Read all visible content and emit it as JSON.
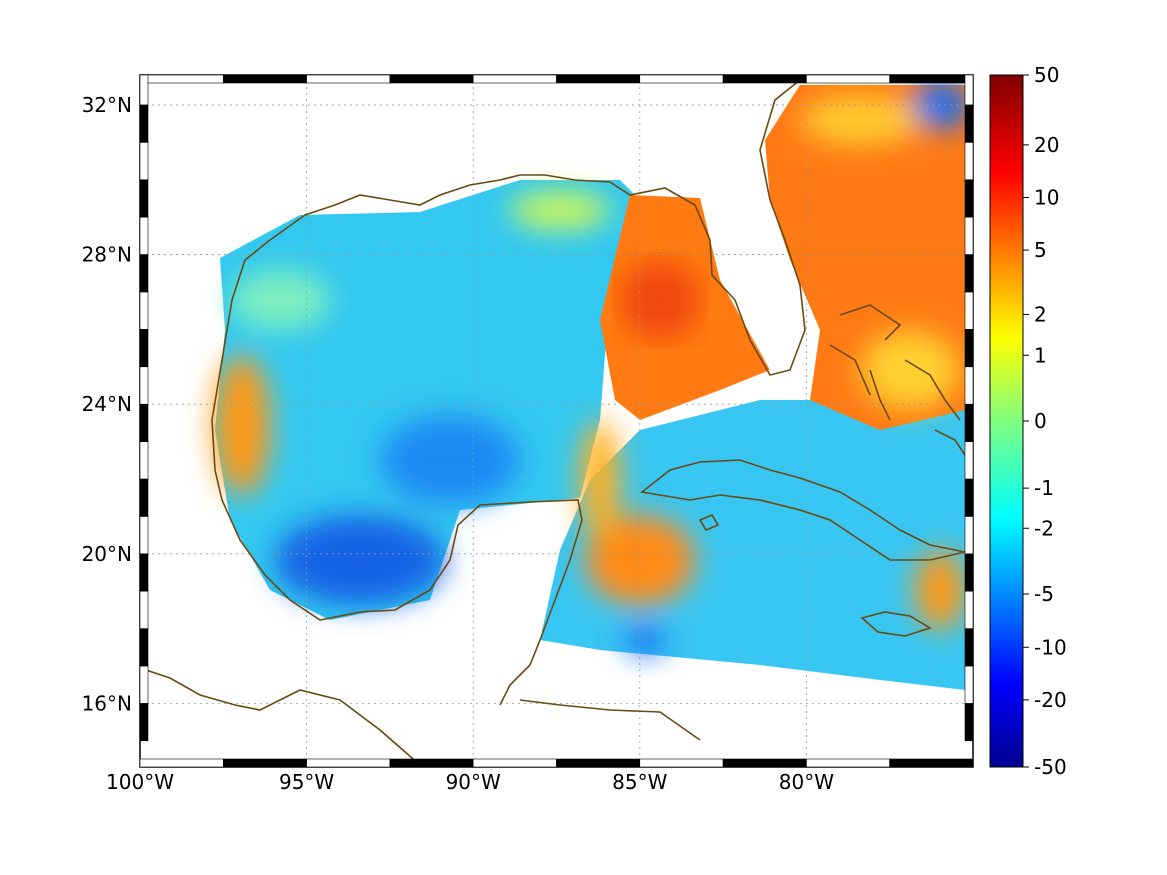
{
  "map": {
    "lon_range": [
      -100,
      -75
    ],
    "lat_range": [
      14.3,
      32.8
    ],
    "lon_ticks": [
      {
        "value": -100,
        "label": "100°W"
      },
      {
        "value": -95,
        "label": "95°W"
      },
      {
        "value": -90,
        "label": "90°W"
      },
      {
        "value": -85,
        "label": "85°W"
      },
      {
        "value": -80,
        "label": "80°W"
      }
    ],
    "lat_ticks": [
      {
        "value": 16,
        "label": "16°N"
      },
      {
        "value": 20,
        "label": "20°N"
      },
      {
        "value": 24,
        "label": "24°N"
      },
      {
        "value": 28,
        "label": "28°N"
      },
      {
        "value": 32,
        "label": "32°N"
      }
    ],
    "grid": true,
    "coastline_color": "#6b4a12",
    "colormap": "jet"
  },
  "colorbar": {
    "labels": [
      "50",
      "20",
      "10",
      "5",
      "2",
      "1",
      "0",
      "-1",
      "-2",
      "-5",
      "-10",
      "-20",
      "-50"
    ]
  }
}
